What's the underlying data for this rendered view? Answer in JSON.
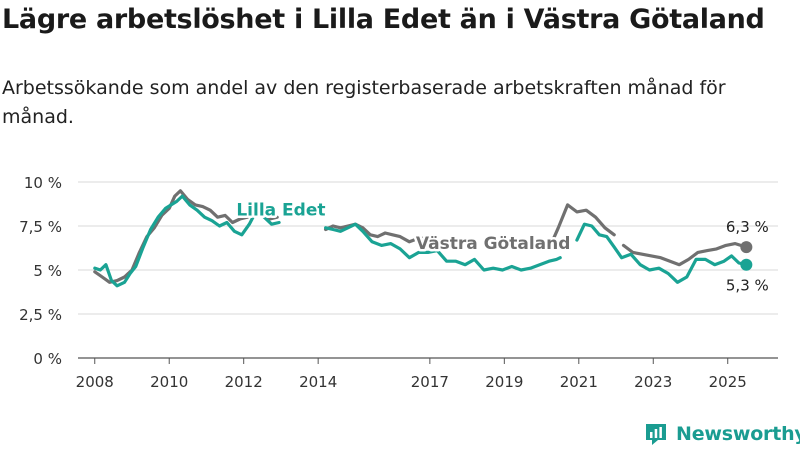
{
  "title": "Lägre arbetslöshet i Lilla Edet än i Västra Götaland",
  "subtitle": "Arbetssökande som andel av den registerbaserade arbetskraften månad för månad.",
  "brand": {
    "name": "Newsworthy",
    "color": "#1a9c91",
    "icon": "bar-chart-icon"
  },
  "chart_data": {
    "type": "line",
    "x_unit": "year",
    "ylim": [
      0,
      10
    ],
    "yticks": [
      0,
      2.5,
      5,
      7.5,
      10
    ],
    "ytick_labels": [
      "0 %",
      "2,5 %",
      "5 %",
      "7,5 %",
      "10 %"
    ],
    "xticks": [
      2008,
      2010,
      2012,
      2014,
      2017,
      2019,
      2021,
      2023,
      2025
    ],
    "xtick_labels": [
      "2008",
      "2010",
      "2012",
      "2014",
      "2017",
      "2019",
      "2021",
      "2023",
      "2025"
    ],
    "grid": "horizontal",
    "series": [
      {
        "name": "Lilla Edet",
        "color": "#1aa394",
        "end_label": "5,3 %",
        "points": [
          [
            2008.0,
            5.1
          ],
          [
            2008.15,
            5.0
          ],
          [
            2008.3,
            5.3
          ],
          [
            2008.45,
            4.4
          ],
          [
            2008.6,
            4.1
          ],
          [
            2008.8,
            4.3
          ],
          [
            2008.95,
            4.8
          ],
          [
            2009.1,
            5.2
          ],
          [
            2009.3,
            6.3
          ],
          [
            2009.5,
            7.3
          ],
          [
            2009.7,
            8.0
          ],
          [
            2009.9,
            8.5
          ],
          [
            2010.05,
            8.7
          ],
          [
            2010.2,
            8.9
          ],
          [
            2010.35,
            9.2
          ],
          [
            2010.55,
            8.7
          ],
          [
            2010.75,
            8.4
          ],
          [
            2010.95,
            8.0
          ],
          [
            2011.15,
            7.8
          ],
          [
            2011.35,
            7.5
          ],
          [
            2011.55,
            7.7
          ],
          [
            2011.75,
            7.2
          ],
          [
            2011.95,
            7.0
          ],
          [
            2012.15,
            7.6
          ],
          [
            2012.35,
            8.4
          ],
          [
            2012.55,
            8.0
          ],
          [
            2012.75,
            7.6
          ],
          [
            2012.95,
            7.7
          ]
        ],
        "points_2": [
          [
            2014.2,
            7.4
          ],
          [
            2014.4,
            7.3
          ],
          [
            2014.6,
            7.2
          ],
          [
            2014.8,
            7.4
          ],
          [
            2015.0,
            7.6
          ],
          [
            2015.2,
            7.2
          ],
          [
            2015.45,
            6.6
          ],
          [
            2015.7,
            6.4
          ],
          [
            2015.95,
            6.5
          ],
          [
            2016.2,
            6.2
          ],
          [
            2016.45,
            5.7
          ],
          [
            2016.7,
            6.0
          ],
          [
            2016.95,
            6.0
          ],
          [
            2017.2,
            6.1
          ],
          [
            2017.45,
            5.5
          ],
          [
            2017.7,
            5.5
          ],
          [
            2017.95,
            5.3
          ],
          [
            2018.2,
            5.6
          ],
          [
            2018.45,
            5.0
          ],
          [
            2018.7,
            5.1
          ],
          [
            2018.95,
            5.0
          ],
          [
            2019.2,
            5.2
          ],
          [
            2019.45,
            5.0
          ],
          [
            2019.7,
            5.1
          ],
          [
            2019.95,
            5.3
          ],
          [
            2020.2,
            5.5
          ],
          [
            2020.4,
            5.6
          ],
          [
            2020.5,
            5.7
          ]
        ],
        "points_3": [
          [
            2020.95,
            6.7
          ],
          [
            2021.15,
            7.6
          ],
          [
            2021.35,
            7.5
          ],
          [
            2021.55,
            7.0
          ],
          [
            2021.75,
            6.9
          ],
          [
            2021.95,
            6.3
          ],
          [
            2022.15,
            5.7
          ],
          [
            2022.4,
            5.9
          ],
          [
            2022.65,
            5.3
          ],
          [
            2022.9,
            5.0
          ],
          [
            2023.15,
            5.1
          ],
          [
            2023.4,
            4.8
          ],
          [
            2023.65,
            4.3
          ],
          [
            2023.9,
            4.6
          ],
          [
            2024.15,
            5.6
          ],
          [
            2024.4,
            5.6
          ],
          [
            2024.65,
            5.3
          ],
          [
            2024.9,
            5.5
          ],
          [
            2025.1,
            5.8
          ],
          [
            2025.3,
            5.4
          ],
          [
            2025.5,
            5.3
          ]
        ]
      },
      {
        "name": "Västra Götaland",
        "color": "#707070",
        "end_label": "6,3 %",
        "points": [
          [
            2008.0,
            4.9
          ],
          [
            2008.2,
            4.6
          ],
          [
            2008.4,
            4.3
          ],
          [
            2008.6,
            4.4
          ],
          [
            2008.8,
            4.6
          ],
          [
            2009.0,
            5.0
          ],
          [
            2009.2,
            6.0
          ],
          [
            2009.4,
            6.9
          ],
          [
            2009.6,
            7.4
          ],
          [
            2009.8,
            8.1
          ],
          [
            2010.0,
            8.5
          ],
          [
            2010.15,
            9.2
          ],
          [
            2010.3,
            9.5
          ],
          [
            2010.5,
            9.0
          ],
          [
            2010.7,
            8.7
          ],
          [
            2010.9,
            8.6
          ],
          [
            2011.1,
            8.4
          ],
          [
            2011.3,
            8.0
          ],
          [
            2011.5,
            8.1
          ],
          [
            2011.7,
            7.7
          ],
          [
            2011.9,
            7.9
          ],
          [
            2012.1,
            8.0
          ],
          [
            2012.3,
            8.5
          ],
          [
            2012.5,
            8.2
          ],
          [
            2012.7,
            7.9
          ],
          [
            2012.9,
            8.0
          ]
        ],
        "points_2": [
          [
            2014.2,
            7.3
          ],
          [
            2014.4,
            7.5
          ],
          [
            2014.6,
            7.4
          ],
          [
            2014.8,
            7.5
          ],
          [
            2015.0,
            7.6
          ],
          [
            2015.2,
            7.4
          ],
          [
            2015.4,
            7.0
          ],
          [
            2015.6,
            6.9
          ],
          [
            2015.8,
            7.1
          ],
          [
            2016.0,
            7.0
          ],
          [
            2016.2,
            6.9
          ],
          [
            2016.45,
            6.6
          ],
          [
            2016.7,
            6.8
          ],
          [
            2016.95,
            6.8
          ],
          [
            2017.15,
            6.9
          ]
        ],
        "points_3": [
          [
            2020.2,
            6.2
          ],
          [
            2020.45,
            7.4
          ],
          [
            2020.7,
            8.7
          ],
          [
            2020.95,
            8.3
          ],
          [
            2021.2,
            8.4
          ],
          [
            2021.45,
            8.0
          ],
          [
            2021.7,
            7.4
          ],
          [
            2021.95,
            7.0
          ]
        ],
        "points_4": [
          [
            2022.2,
            6.4
          ],
          [
            2022.45,
            6.0
          ],
          [
            2022.7,
            5.9
          ],
          [
            2022.95,
            5.8
          ],
          [
            2023.2,
            5.7
          ],
          [
            2023.45,
            5.5
          ],
          [
            2023.7,
            5.3
          ],
          [
            2023.95,
            5.6
          ],
          [
            2024.2,
            6.0
          ],
          [
            2024.45,
            6.1
          ],
          [
            2024.7,
            6.2
          ],
          [
            2024.95,
            6.4
          ],
          [
            2025.2,
            6.5
          ],
          [
            2025.5,
            6.3
          ]
        ]
      }
    ],
    "annotations": [
      {
        "text": "Lilla Edet",
        "color": "#1aa394",
        "x": 2013.0,
        "y": 8.1
      },
      {
        "text": "Västra Götaland",
        "color": "#707070",
        "x": 2018.7,
        "y": 6.2
      }
    ]
  }
}
